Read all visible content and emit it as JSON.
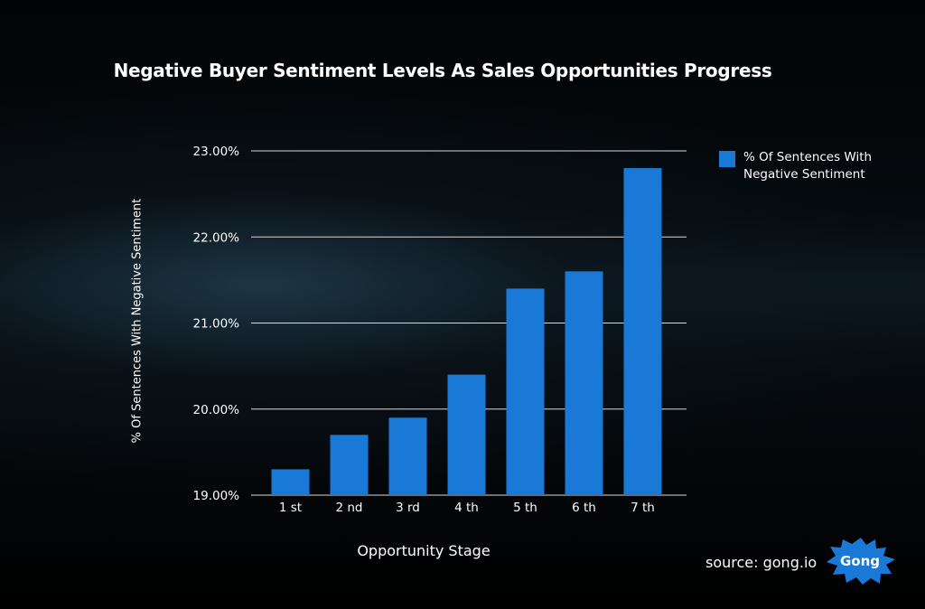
{
  "chart_data": {
    "type": "bar",
    "title": "Negative Buyer Sentiment Levels As Sales Opportunities Progress",
    "xlabel": "Opportunity Stage",
    "ylabel": "% Of Sentences With Negative Sentiment",
    "categories": [
      "1 st",
      "2 nd",
      "3 rd",
      "4 th",
      "5 th",
      "6 th",
      "7 th"
    ],
    "series": [
      {
        "name": "% Of Sentences With Negative Sentiment",
        "values": [
          19.3,
          19.7,
          19.9,
          20.4,
          21.4,
          21.6,
          22.8
        ],
        "color": "#1a78d6"
      }
    ],
    "ylim": [
      19.0,
      23.0
    ],
    "yticks": [
      "19.00%",
      "20.00%",
      "21.00%",
      "22.00%",
      "23.00%"
    ],
    "grid": true,
    "legend_position": "right"
  },
  "source_text": "source: gong.io",
  "logo_text": "Gong",
  "colors": {
    "bar": "#1a78d6",
    "gridline": "#d8d8d8",
    "logo": "#1a78d6"
  }
}
